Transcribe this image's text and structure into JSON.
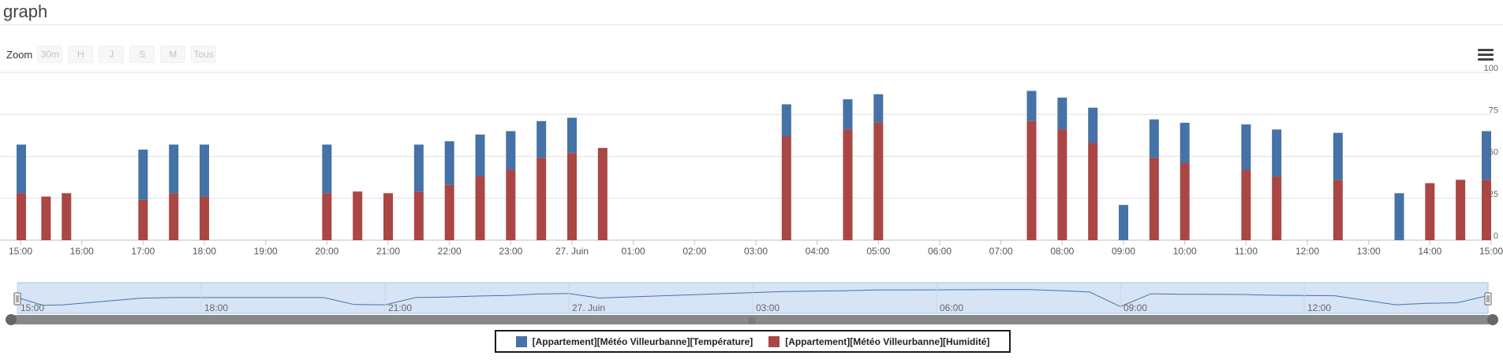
{
  "page": {
    "title": "graph"
  },
  "zoom": {
    "label": "Zoom",
    "buttons": [
      "30m",
      "H",
      "J",
      "S",
      "M",
      "Tous"
    ]
  },
  "colors": {
    "temperature": "#4572a7",
    "humidity": "#aa4643",
    "navigator_fill": "#d6e4f5",
    "navigator_line": "#4572a7"
  },
  "chart_data": {
    "type": "bar",
    "stacking": "normal",
    "x_axis": {
      "type": "datetime",
      "range": [
        "2014-06-26T15:00",
        "2014-06-27T15:00"
      ],
      "ticks": [
        "15:00",
        "16:00",
        "17:00",
        "18:00",
        "19:00",
        "20:00",
        "21:00",
        "22:00",
        "23:00",
        "27. Juin",
        "01:00",
        "02:00",
        "03:00",
        "04:00",
        "05:00",
        "06:00",
        "07:00",
        "08:00",
        "09:00",
        "10:00",
        "11:00",
        "12:00",
        "13:00",
        "14:00",
        "15:00"
      ]
    },
    "y_axis": {
      "min": 0,
      "max": 100,
      "ticks": [
        0,
        25,
        50,
        75,
        100
      ],
      "grid": true,
      "side": "right"
    },
    "x": [
      "2014-06-26T15:00",
      "2014-06-26T15:25",
      "2014-06-26T15:45",
      "2014-06-26T17:00",
      "2014-06-26T17:30",
      "2014-06-26T18:00",
      "2014-06-26T20:00",
      "2014-06-26T20:30",
      "2014-06-26T21:00",
      "2014-06-26T21:30",
      "2014-06-26T22:00",
      "2014-06-26T22:30",
      "2014-06-26T23:00",
      "2014-06-26T23:30",
      "2014-06-27T00:00",
      "2014-06-27T00:30",
      "2014-06-27T03:30",
      "2014-06-27T04:30",
      "2014-06-27T05:00",
      "2014-06-27T07:30",
      "2014-06-27T08:00",
      "2014-06-27T08:30",
      "2014-06-27T09:00",
      "2014-06-27T09:30",
      "2014-06-27T10:00",
      "2014-06-27T11:00",
      "2014-06-27T11:30",
      "2014-06-27T12:30",
      "2014-06-27T13:30",
      "2014-06-27T14:00",
      "2014-06-27T14:30",
      "2014-06-27T15:00"
    ],
    "series": [
      {
        "name": "[Appartement][Météo Villeurbanne][Humidité]",
        "color": "#aa4643",
        "values": [
          28,
          26,
          28,
          24,
          28,
          26,
          28,
          29,
          28,
          29,
          33,
          38,
          42,
          49,
          52,
          55,
          62,
          66,
          70,
          71,
          66,
          58,
          0,
          49,
          46,
          42,
          38,
          36,
          0,
          34,
          36,
          36
        ]
      },
      {
        "name": "[Appartement][Météo Villeurbanne][Température]",
        "color": "#4572a7",
        "values": [
          29,
          0,
          0,
          30,
          29,
          31,
          29,
          0,
          0,
          28,
          26,
          25,
          23,
          22,
          21,
          0,
          19,
          18,
          17,
          18,
          19,
          21,
          21,
          23,
          24,
          27,
          28,
          28,
          28,
          0,
          0,
          29
        ]
      }
    ],
    "navigator": {
      "ticks": [
        "15:00",
        "18:00",
        "21:00",
        "27. Juin",
        "03:00",
        "06:00",
        "09:00",
        "12:00"
      ]
    },
    "legend": {
      "placement": "bottom-center"
    }
  }
}
